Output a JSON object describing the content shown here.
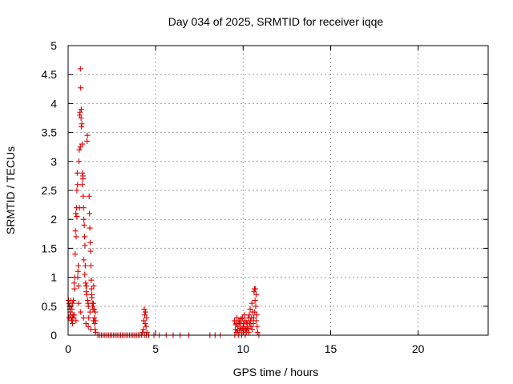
{
  "chart_data": {
    "type": "scatter",
    "title": "Day 034 of 2025, SRMTID for receiver iqqe",
    "xlabel": "GPS time / hours",
    "ylabel": "SRMTID / TECUs",
    "xlim": [
      0,
      24
    ],
    "ylim": [
      0,
      5
    ],
    "xticks": [
      0,
      5,
      10,
      15,
      20
    ],
    "xtick_labels": [
      "0",
      "5",
      "10",
      "15",
      "20"
    ],
    "yticks": [
      0,
      0.5,
      1,
      1.5,
      2,
      2.5,
      3,
      3.5,
      4,
      4.5,
      5
    ],
    "ytick_labels": [
      "0",
      "0.5",
      "1",
      "1.5",
      "2",
      "2.5",
      "3",
      "3.5",
      "4",
      "4.5",
      "5"
    ],
    "grid": true,
    "marker": "plus",
    "series": [
      {
        "color": "#e00000",
        "points": [
          [
            0.02,
            0.6
          ],
          [
            0.05,
            0.55
          ],
          [
            0.08,
            0.5
          ],
          [
            0.1,
            0.45
          ],
          [
            0.12,
            0.4
          ],
          [
            0.14,
            0.35
          ],
          [
            0.16,
            0.3
          ],
          [
            0.18,
            0.5
          ],
          [
            0.2,
            0.25
          ],
          [
            0.22,
            0.45
          ],
          [
            0.24,
            0.3
          ],
          [
            0.26,
            0.55
          ],
          [
            0.28,
            0.35
          ],
          [
            0.3,
            0.6
          ],
          [
            0.32,
            0.3
          ],
          [
            0.34,
            0.9
          ],
          [
            0.36,
            0.8
          ],
          [
            0.38,
            1.0
          ],
          [
            0.4,
            1.4
          ],
          [
            0.42,
            1.8
          ],
          [
            0.44,
            2.1
          ],
          [
            0.46,
            1.7
          ],
          [
            0.48,
            2.2
          ],
          [
            0.5,
            2.5
          ],
          [
            0.52,
            2.8
          ],
          [
            0.54,
            2.6
          ],
          [
            0.56,
            1.1
          ],
          [
            0.58,
            1.2
          ],
          [
            0.6,
            0.85
          ],
          [
            0.62,
            3.0
          ],
          [
            0.64,
            3.2
          ],
          [
            0.66,
            3.8
          ],
          [
            0.68,
            3.85
          ],
          [
            0.7,
            4.6
          ],
          [
            0.72,
            4.27
          ],
          [
            0.74,
            3.75
          ],
          [
            0.76,
            3.6
          ],
          [
            0.78,
            3.65
          ],
          [
            0.8,
            3.3
          ],
          [
            0.82,
            2.8
          ],
          [
            0.84,
            2.7
          ],
          [
            0.86,
            2.4
          ],
          [
            0.88,
            2.2
          ],
          [
            0.9,
            2.0
          ],
          [
            0.92,
            1.9
          ],
          [
            0.94,
            1.7
          ],
          [
            0.96,
            1.55
          ],
          [
            0.98,
            1.2
          ],
          [
            1.0,
            0.9
          ],
          [
            1.02,
            0.85
          ],
          [
            1.04,
            0.75
          ],
          [
            1.06,
            0.7
          ],
          [
            1.08,
            3.35
          ],
          [
            1.1,
            3.45
          ],
          [
            1.12,
            0.6
          ],
          [
            1.14,
            0.55
          ],
          [
            1.16,
            0.5
          ],
          [
            1.18,
            0.3
          ],
          [
            1.2,
            2.4
          ],
          [
            1.22,
            2.1
          ],
          [
            1.24,
            1.85
          ],
          [
            1.26,
            1.6
          ],
          [
            1.28,
            1.45
          ],
          [
            1.3,
            1.2
          ],
          [
            1.32,
            0.95
          ],
          [
            1.34,
            0.8
          ],
          [
            1.36,
            0.65
          ],
          [
            1.38,
            0.55
          ],
          [
            1.4,
            0.5
          ],
          [
            1.42,
            0.45
          ],
          [
            1.44,
            0.55
          ],
          [
            1.46,
            0.85
          ],
          [
            1.48,
            0.45
          ],
          [
            1.5,
            0.3
          ],
          [
            1.52,
            0.2
          ],
          [
            1.54,
            0.1
          ],
          [
            1.56,
            0.25
          ],
          [
            1.58,
            0.05
          ],
          [
            0.25,
            0.2
          ],
          [
            0.35,
            0.35
          ],
          [
            0.45,
            0.25
          ],
          [
            0.55,
            1.0
          ],
          [
            0.65,
            2.2
          ],
          [
            0.75,
            3.9
          ],
          [
            0.85,
            2.75
          ],
          [
            0.95,
            1.05
          ],
          [
            1.05,
            0.85
          ],
          [
            1.15,
            0.15
          ],
          [
            1.25,
            0.4
          ],
          [
            1.35,
            0.7
          ],
          [
            1.45,
            0.25
          ],
          [
            0.7,
            3.25
          ],
          [
            0.8,
            2.6
          ],
          [
            0.9,
            1.3
          ],
          [
            0.5,
            2.05
          ],
          [
            0.6,
            0.55
          ],
          [
            0.72,
            0.4
          ],
          [
            0.88,
            0.3
          ],
          [
            1.02,
            0.2
          ],
          [
            1.3,
            0.1
          ],
          [
            1.55,
            0.4
          ],
          [
            0.15,
            0.6
          ],
          [
            0.05,
            0.3
          ],
          [
            1.7,
            0
          ],
          [
            1.8,
            0
          ],
          [
            1.9,
            0
          ],
          [
            2.0,
            0
          ],
          [
            2.1,
            0
          ],
          [
            2.2,
            0
          ],
          [
            2.3,
            0
          ],
          [
            2.4,
            0
          ],
          [
            2.5,
            0
          ],
          [
            2.6,
            0
          ],
          [
            2.7,
            0
          ],
          [
            2.8,
            0
          ],
          [
            2.9,
            0
          ],
          [
            3.0,
            0
          ],
          [
            3.1,
            0
          ],
          [
            3.2,
            0
          ],
          [
            3.3,
            0
          ],
          [
            3.4,
            0
          ],
          [
            3.5,
            0
          ],
          [
            3.6,
            0
          ],
          [
            3.7,
            0
          ],
          [
            3.8,
            0
          ],
          [
            3.9,
            0
          ],
          [
            4.0,
            0
          ],
          [
            4.1,
            0
          ],
          [
            4.2,
            0
          ],
          [
            4.25,
            0.05
          ],
          [
            4.3,
            0.1
          ],
          [
            4.32,
            0.25
          ],
          [
            4.35,
            0.45
          ],
          [
            4.38,
            0.35
          ],
          [
            4.4,
            0.2
          ],
          [
            4.42,
            0.4
          ],
          [
            4.45,
            0.15
          ],
          [
            4.48,
            0.3
          ],
          [
            4.5,
            0.05
          ],
          [
            4.36,
            0.0
          ],
          [
            4.46,
            0.0
          ],
          [
            4.6,
            0
          ],
          [
            4.9,
            0
          ],
          [
            5.2,
            0
          ],
          [
            5.6,
            0
          ],
          [
            6.0,
            0
          ],
          [
            6.4,
            0
          ],
          [
            6.9,
            0
          ],
          [
            8.1,
            0
          ],
          [
            8.4,
            0
          ],
          [
            8.7,
            0
          ],
          [
            9.5,
            0.25
          ],
          [
            9.55,
            0.1
          ],
          [
            9.6,
            0.2
          ],
          [
            9.65,
            0.3
          ],
          [
            9.7,
            0.15
          ],
          [
            9.75,
            0.25
          ],
          [
            9.8,
            0.05
          ],
          [
            9.85,
            0.2
          ],
          [
            9.9,
            0.1
          ],
          [
            9.95,
            0.3
          ],
          [
            10.0,
            0.2
          ],
          [
            10.05,
            0.15
          ],
          [
            10.1,
            0.25
          ],
          [
            10.15,
            0.1
          ],
          [
            10.2,
            0.05
          ],
          [
            10.25,
            0.2
          ],
          [
            10.3,
            0.3
          ],
          [
            10.35,
            0.35
          ],
          [
            10.4,
            0.45
          ],
          [
            10.45,
            0.15
          ],
          [
            10.5,
            0.55
          ],
          [
            10.55,
            0.4
          ],
          [
            10.6,
            0.3
          ],
          [
            10.62,
            0.75
          ],
          [
            10.65,
            0.8
          ],
          [
            10.68,
            0.6
          ],
          [
            10.7,
            0.8
          ],
          [
            10.72,
            0.5
          ],
          [
            10.75,
            0.7
          ],
          [
            10.78,
            0.35
          ],
          [
            10.8,
            0.15
          ],
          [
            10.82,
            0.05
          ],
          [
            9.52,
            0.0
          ],
          [
            9.62,
            0.05
          ],
          [
            9.72,
            0.0
          ],
          [
            9.82,
            0.12
          ],
          [
            9.92,
            0.0
          ],
          [
            10.02,
            0.08
          ],
          [
            10.12,
            0.0
          ],
          [
            10.22,
            0.12
          ],
          [
            10.32,
            0.05
          ],
          [
            10.42,
            0.25
          ],
          [
            10.52,
            0.1
          ],
          [
            10.58,
            0.2
          ],
          [
            10.66,
            0.4
          ],
          [
            10.74,
            0.25
          ],
          [
            10.9,
            0.0
          ],
          [
            9.58,
            0.18
          ],
          [
            9.68,
            0.08
          ],
          [
            9.78,
            0.22
          ],
          [
            9.88,
            0.28
          ],
          [
            9.98,
            0.12
          ],
          [
            10.08,
            0.35
          ],
          [
            10.18,
            0.22
          ],
          [
            10.28,
            0.12
          ],
          [
            10.38,
            0.2
          ],
          [
            10.48,
            0.3
          ]
        ]
      }
    ]
  }
}
